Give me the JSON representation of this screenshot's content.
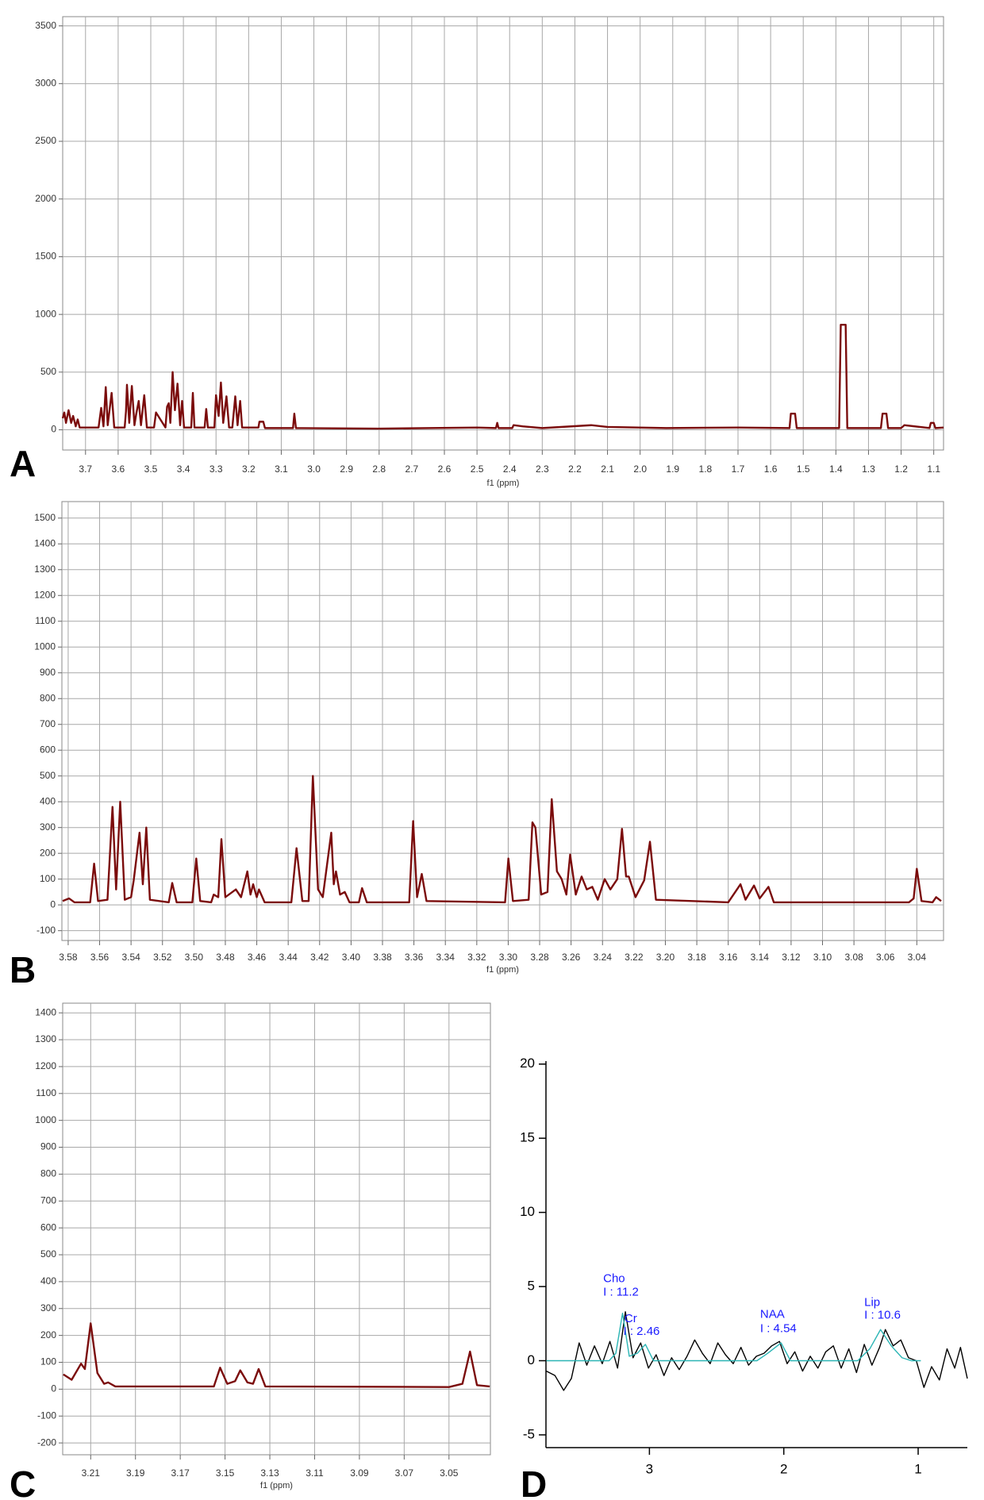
{
  "chart_data": [
    {
      "type": "line",
      "label": "A",
      "xlabel": "f1 (ppm)",
      "grid": true,
      "xlim": [
        3.77,
        1.07
      ],
      "ylim": [
        -175,
        3580
      ],
      "xticks": [
        3.7,
        3.6,
        3.5,
        3.4,
        3.3,
        3.2,
        3.1,
        {
          "value": 3,
          "label": "3.0"
        },
        2.9,
        2.8,
        2.7,
        2.6,
        2.5,
        2.4,
        2.3,
        2.2,
        2.1,
        {
          "value": 2,
          "label": "2.0"
        },
        1.9,
        1.8,
        1.7,
        1.6,
        1.5,
        1.4,
        1.3,
        1.2,
        1.1
      ],
      "yticks": [
        0,
        500,
        1000,
        1500,
        2000,
        2500,
        3000,
        3500
      ],
      "series": [
        {
          "color": "#7b0c0c",
          "x": [
            3.77,
            3.765,
            3.76,
            3.752,
            3.744,
            3.738,
            3.73,
            3.724,
            3.718,
            3.66,
            3.652,
            3.645,
            3.638,
            3.632,
            3.62,
            3.612,
            3.58,
            3.576,
            3.573,
            3.566,
            3.558,
            3.55,
            3.545,
            3.537,
            3.53,
            3.52,
            3.512,
            3.49,
            3.484,
            3.455,
            3.45,
            3.445,
            3.44,
            3.433,
            3.426,
            3.418,
            3.41,
            3.404,
            3.398,
            3.376,
            3.371,
            3.366,
            3.335,
            3.33,
            3.325,
            3.305,
            3.3,
            3.292,
            3.285,
            3.278,
            3.268,
            3.26,
            3.25,
            3.241,
            3.234,
            3.226,
            3.22,
            3.17,
            3.167,
            3.155,
            3.15,
            3.064,
            3.06,
            3.055,
            2.8,
            2.5,
            2.442,
            2.438,
            2.434,
            2.392,
            2.388,
            2.36,
            2.3,
            2.15,
            2.1,
            1.92,
            1.7,
            1.542,
            1.538,
            1.525,
            1.52,
            1.39,
            1.385,
            1.37,
            1.365,
            1.262,
            1.257,
            1.245,
            1.24,
            1.2,
            1.19,
            1.113,
            1.109,
            1.1,
            1.095,
            1.07
          ],
          "values": [
            100,
            150,
            60,
            170,
            60,
            120,
            30,
            90,
            20,
            20,
            190,
            30,
            370,
            40,
            320,
            20,
            20,
            160,
            390,
            60,
            380,
            40,
            130,
            250,
            40,
            300,
            20,
            20,
            150,
            20,
            200,
            230,
            60,
            500,
            170,
            400,
            40,
            250,
            20,
            20,
            320,
            20,
            20,
            180,
            20,
            20,
            300,
            120,
            410,
            60,
            290,
            20,
            20,
            290,
            40,
            250,
            20,
            20,
            70,
            70,
            15,
            15,
            140,
            15,
            10,
            20,
            15,
            60,
            15,
            15,
            40,
            30,
            15,
            40,
            25,
            15,
            20,
            15,
            140,
            140,
            15,
            15,
            910,
            910,
            15,
            15,
            140,
            140,
            15,
            15,
            40,
            15,
            60,
            60,
            15,
            20
          ]
        }
      ]
    },
    {
      "type": "line",
      "label": "B",
      "xlabel": "f1 (ppm)",
      "grid": true,
      "xlim": [
        3.584,
        3.023
      ],
      "ylim": [
        -138,
        1564
      ],
      "xticks": [
        3.58,
        3.56,
        3.54,
        3.52,
        {
          "value": 3.5,
          "label": "3.50"
        },
        3.48,
        3.46,
        3.44,
        3.42,
        {
          "value": 3.4,
          "label": "3.40"
        },
        3.38,
        3.36,
        3.34,
        3.32,
        {
          "value": 3.3,
          "label": "3.30"
        },
        3.28,
        3.26,
        3.24,
        3.22,
        {
          "value": 3.2,
          "label": "3.20"
        },
        3.18,
        3.16,
        3.14,
        3.12,
        {
          "value": 3.1,
          "label": "3.10"
        },
        3.08,
        3.06,
        3.04
      ],
      "yticks": [
        -100,
        0,
        100,
        200,
        300,
        400,
        500,
        600,
        700,
        800,
        900,
        1000,
        1100,
        1200,
        1300,
        1400,
        1500
      ],
      "series": [
        {
          "color": "#7b0c0c",
          "x": [
            3.5835,
            3.5794,
            3.576,
            3.566,
            3.5635,
            3.561,
            3.555,
            3.5518,
            3.5495,
            3.5469,
            3.544,
            3.54,
            3.5383,
            3.5346,
            3.5325,
            3.5303,
            3.528,
            3.516,
            3.5138,
            3.511,
            3.501,
            3.4985,
            3.496,
            3.489,
            3.4874,
            3.4845,
            3.4825,
            3.48,
            3.4733,
            3.47,
            3.466,
            3.464,
            3.4623,
            3.46,
            3.4586,
            3.455,
            3.438,
            3.4347,
            3.431,
            3.427,
            3.4243,
            3.421,
            3.418,
            3.4126,
            3.411,
            3.4096,
            3.407,
            3.404,
            3.401,
            3.395,
            3.393,
            3.39,
            3.363,
            3.3605,
            3.358,
            3.355,
            3.352,
            3.302,
            3.2999,
            3.297,
            3.287,
            3.2846,
            3.2827,
            3.279,
            3.275,
            3.2723,
            3.269,
            3.266,
            3.263,
            3.2606,
            3.257,
            3.2533,
            3.25,
            3.2465,
            3.243,
            3.2386,
            3.235,
            3.2306,
            3.2276,
            3.225,
            3.2233,
            3.219,
            3.2135,
            3.2098,
            3.206,
            3.16,
            3.1522,
            3.149,
            3.1436,
            3.14,
            3.1344,
            3.131,
            3.045,
            3.042,
            3.04,
            3.037,
            3.03,
            3.0277,
            3.0245
          ],
          "values": [
            15,
            25,
            10,
            10,
            160,
            15,
            20,
            380,
            60,
            400,
            20,
            30,
            95,
            280,
            80,
            300,
            20,
            10,
            85,
            10,
            10,
            180,
            15,
            10,
            40,
            30,
            255,
            30,
            60,
            30,
            130,
            40,
            80,
            30,
            60,
            10,
            10,
            220,
            15,
            15,
            500,
            60,
            30,
            280,
            80,
            130,
            40,
            50,
            10,
            10,
            65,
            10,
            10,
            325,
            30,
            120,
            15,
            10,
            180,
            15,
            20,
            320,
            300,
            40,
            50,
            410,
            130,
            100,
            40,
            195,
            40,
            110,
            60,
            70,
            20,
            100,
            60,
            100,
            295,
            110,
            110,
            30,
            95,
            245,
            20,
            10,
            80,
            20,
            75,
            25,
            70,
            10,
            10,
            25,
            140,
            15,
            10,
            30,
            15
          ]
        }
      ]
    },
    {
      "type": "line",
      "label": "C",
      "xlabel": "f1 (ppm)",
      "grid": true,
      "xlim": [
        3.2225,
        3.0315
      ],
      "ylim": [
        -244,
        1436
      ],
      "xticks": [
        3.21,
        3.19,
        3.17,
        3.15,
        3.13,
        3.11,
        3.09,
        3.07,
        3.05
      ],
      "yticks": [
        -200,
        -100,
        0,
        100,
        200,
        300,
        400,
        500,
        600,
        700,
        800,
        900,
        1000,
        1100,
        1200,
        1300,
        1400
      ],
      "series": [
        {
          "color": "#7b0c0c",
          "x": [
            3.2222,
            3.2185,
            3.2143,
            3.2126,
            3.21,
            3.207,
            3.204,
            3.2022,
            3.199,
            3.155,
            3.1522,
            3.149,
            3.1455,
            3.1432,
            3.14,
            3.1375,
            3.135,
            3.132,
            3.05,
            3.044,
            3.0406,
            3.0375,
            3.0318
          ],
          "values": [
            55,
            35,
            95,
            75,
            245,
            60,
            20,
            25,
            10,
            10,
            80,
            20,
            30,
            70,
            25,
            20,
            75,
            10,
            8,
            20,
            140,
            15,
            10
          ]
        }
      ]
    },
    {
      "type": "line",
      "label": "D",
      "grid": false,
      "xlim": [
        3.77,
        0.634
      ],
      "ylim": [
        -5.86,
        20.2
      ],
      "xticks": [
        3,
        2,
        1
      ],
      "yticks": [
        -5,
        0,
        5,
        10,
        15,
        20
      ],
      "series": [
        {
          "color": "#000000",
          "x": [
            3.767,
            3.703,
            3.638,
            3.581,
            3.523,
            3.466,
            3.409,
            3.351,
            3.294,
            3.237,
            3.179,
            3.122,
            3.065,
            3.007,
            2.95,
            2.892,
            2.835,
            2.778,
            2.72,
            2.663,
            2.606,
            2.548,
            2.491,
            2.434,
            2.376,
            2.319,
            2.262,
            2.204,
            2.147,
            2.09,
            2.032,
            1.975,
            1.918,
            1.86,
            1.803,
            1.746,
            1.688,
            1.631,
            1.573,
            1.516,
            1.459,
            1.401,
            1.344,
            1.287,
            1.244,
            1.186,
            1.129,
            1.072,
            1.014,
            0.957,
            0.9,
            0.842,
            0.785,
            0.728,
            0.685,
            0.634
          ],
          "values": [
            -0.7,
            -1.0,
            -2.0,
            -1.2,
            1.2,
            -0.3,
            1.0,
            -0.2,
            1.3,
            -0.5,
            3.3,
            0.2,
            1.2,
            -0.5,
            0.4,
            -1.0,
            0.2,
            -0.6,
            0.3,
            1.4,
            0.5,
            -0.2,
            1.2,
            0.4,
            -0.2,
            0.9,
            -0.3,
            0.3,
            0.5,
            1.0,
            1.3,
            -0.2,
            0.6,
            -0.7,
            0.3,
            -0.5,
            0.6,
            1.0,
            -0.5,
            0.8,
            -0.8,
            1.1,
            -0.3,
            0.9,
            2.1,
            1.0,
            1.4,
            0.2,
            0.0,
            -1.8,
            -0.4,
            -1.3,
            0.8,
            -0.5,
            0.9,
            -1.2
          ]
        },
        {
          "color": "#2bb5b5",
          "x": [
            3.767,
            3.3,
            3.25,
            3.2,
            3.15,
            3.09,
            3.03,
            2.97,
            2.2,
            2.12,
            2.02,
            1.95,
            1.45,
            1.36,
            1.28,
            1.2,
            1.12,
            1.05,
            0.98
          ],
          "values": [
            0,
            0,
            0.5,
            3.2,
            0.3,
            0.5,
            1.1,
            0,
            0,
            0.5,
            1.2,
            0,
            0,
            0.8,
            2.1,
            1.0,
            0.2,
            0,
            0
          ]
        }
      ],
      "annotations": [
        {
          "text": "Cho",
          "x": 3.344,
          "y": 5.5
        },
        {
          "text": "I : 11.2",
          "x": 3.344,
          "y": 4.6
        },
        {
          "text": "Cr",
          "x": 3.186,
          "y": 2.8
        },
        {
          "text": "I : 2.46",
          "x": 3.194,
          "y": 1.95
        },
        {
          "text": "NAA",
          "x": 2.176,
          "y": 3.1
        },
        {
          "text": "I : 4.54",
          "x": 2.176,
          "y": 2.15
        },
        {
          "text": "Lip",
          "x": 1.401,
          "y": 3.9
        },
        {
          "text": "I : 10.6",
          "x": 1.401,
          "y": 3.06
        }
      ]
    }
  ]
}
